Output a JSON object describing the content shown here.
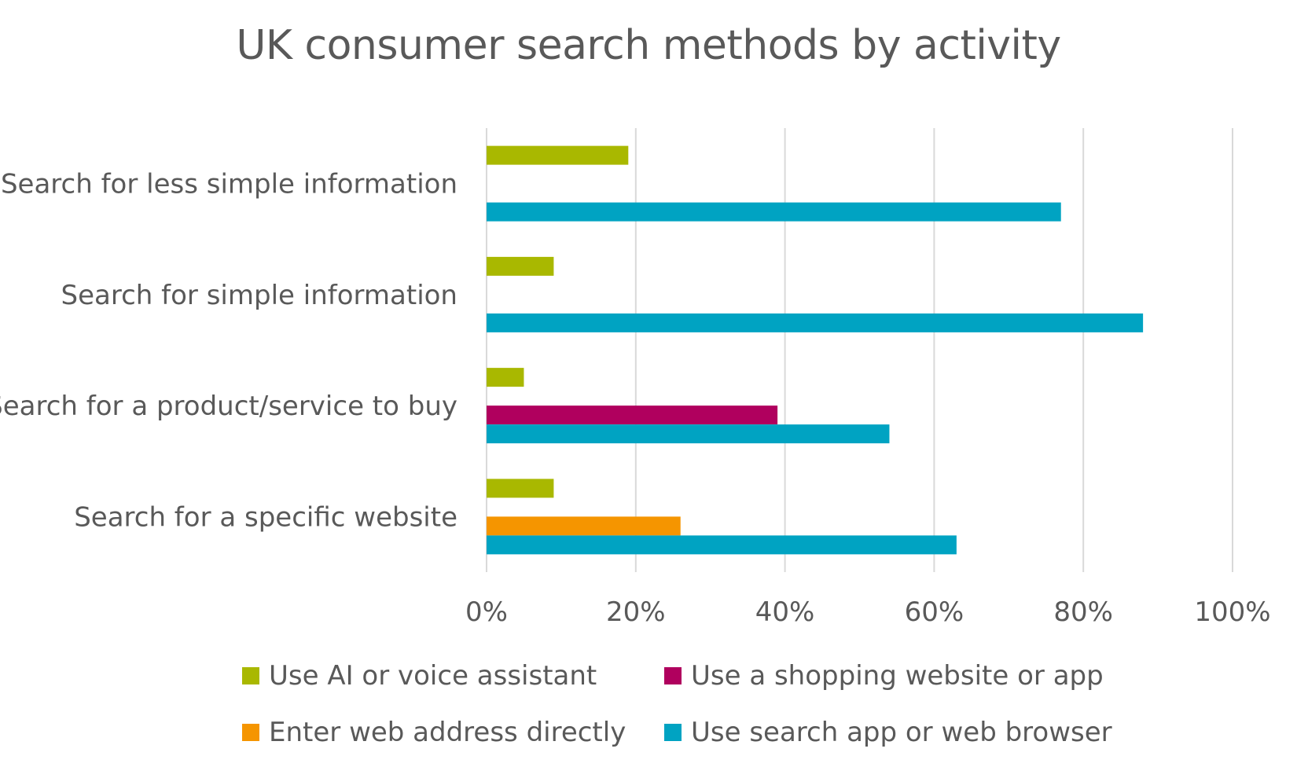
{
  "chart_data": {
    "type": "bar",
    "orientation": "horizontal",
    "title": "UK consumer search methods by activity",
    "categories": [
      "Search for less simple information",
      "Search for simple information",
      "Search for a product/service to buy",
      "Search for a specific website"
    ],
    "series": [
      {
        "name": "Use AI or voice assistant",
        "color": "#A9B800",
        "values": [
          19,
          9,
          5,
          9
        ]
      },
      {
        "name": "Use a shopping website or app",
        "color": "#B0005E",
        "values": [
          null,
          null,
          39,
          null
        ]
      },
      {
        "name": "Enter web address directly",
        "color": "#F59500",
        "values": [
          null,
          null,
          null,
          26
        ]
      },
      {
        "name": "Use search app or web browser",
        "color": "#00A3C2",
        "values": [
          77,
          88,
          54,
          63
        ]
      }
    ],
    "xlim": [
      0,
      100
    ],
    "xticks": [
      "0%",
      "20%",
      "40%",
      "60%",
      "80%",
      "100%"
    ],
    "grid": true,
    "legend_position": "bottom"
  }
}
